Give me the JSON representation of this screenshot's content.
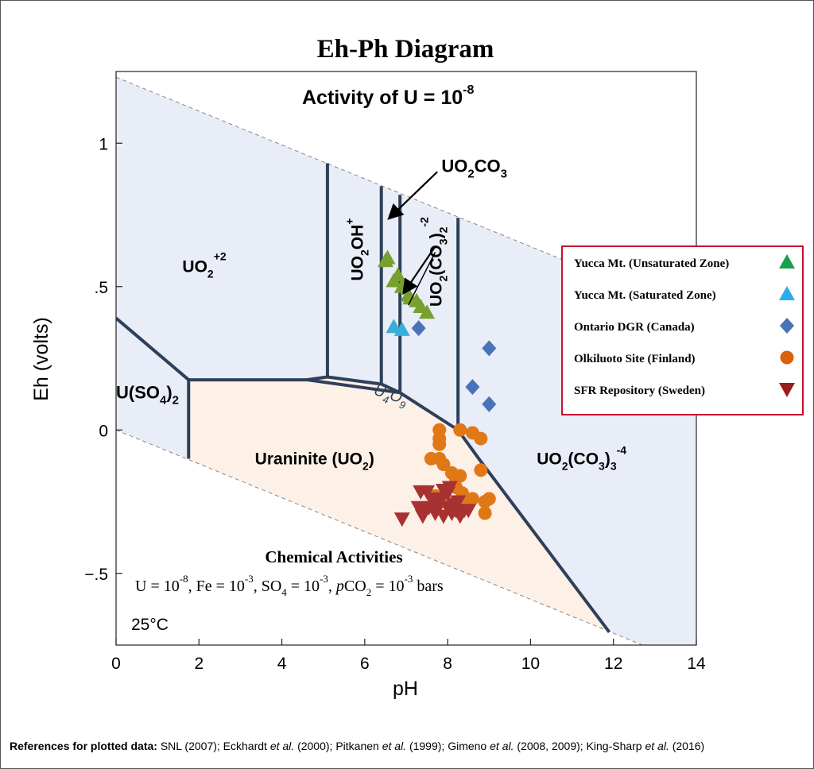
{
  "chart_data": {
    "type": "scatter",
    "title": "Eh-Ph Diagram",
    "subtitle_prefix": "Activity of U  =  10",
    "subtitle_exp": "-8",
    "xlabel": "pH",
    "ylabel": "Eh (volts)",
    "xlim": [
      0,
      14
    ],
    "ylim": [
      -0.75,
      1.25
    ],
    "xticks": [
      0,
      2,
      4,
      6,
      8,
      10,
      12,
      14
    ],
    "xtick_labels": [
      "0",
      "2",
      "4",
      "6",
      "8",
      "10",
      "12",
      "14"
    ],
    "yticks": [
      1,
      0.5,
      0,
      -0.5
    ],
    "ytick_labels": [
      "1",
      ".5",
      "0",
      "−.5"
    ],
    "grid": false,
    "legend_position": "right",
    "water_stability": {
      "upper": [
        [
          0,
          1.23
        ],
        [
          12.6,
          0.486
        ]
      ],
      "lower": [
        [
          0,
          0
        ],
        [
          12.6,
          -0.744
        ]
      ]
    },
    "boundaries": [
      [
        [
          0,
          0.39
        ],
        [
          1.75,
          0.175
        ],
        [
          4.6,
          0.175
        ],
        [
          5.1,
          0.185
        ],
        [
          6.4,
          0.16
        ],
        [
          6.85,
          0.13
        ],
        [
          8.25,
          0.0
        ],
        [
          8.75,
          -0.1
        ],
        [
          11.9,
          -0.705
        ]
      ],
      [
        [
          1.75,
          0.175
        ],
        [
          1.75,
          -0.1
        ]
      ],
      [
        [
          5.1,
          0.185
        ],
        [
          5.1,
          0.93
        ]
      ],
      [
        [
          6.4,
          0.16
        ],
        [
          6.4,
          0.85
        ]
      ],
      [
        [
          6.85,
          0.13
        ],
        [
          6.85,
          0.82
        ]
      ],
      [
        [
          8.25,
          0.0
        ],
        [
          8.25,
          0.74
        ]
      ],
      [
        [
          4.6,
          0.175
        ],
        [
          6.85,
          0.13
        ]
      ]
    ],
    "regions": {
      "uo2_2": {
        "base": "UO",
        "sub": "2",
        "sup": "+2",
        "at": [
          1.6,
          0.55
        ]
      },
      "u_so4_2": {
        "pre": "U(SO",
        "sub1": "4",
        "mid": ")",
        "sub2": "2",
        "at": [
          0.0,
          0.11
        ]
      },
      "uo2oh": {
        "base": "UO",
        "sub": "2",
        "mid": "OH",
        "sup": "+",
        "at": [
          5.95,
          0.52
        ]
      },
      "uo2co3_2": {
        "pre": "UO",
        "sub1": "2",
        "mid": "(CO",
        "sub2": "3",
        "post": ")",
        "sub3": "2",
        "sup": "-2",
        "at": [
          7.85,
          0.43
        ]
      },
      "uo2co3": {
        "pre": "UO",
        "sub1": "2",
        "mid": "CO",
        "sub2": "3",
        "at": [
          7.85,
          0.9
        ]
      },
      "u4o9": {
        "pre": "U",
        "sub1": "4",
        "mid": "O",
        "sub2": "9",
        "at": [
          6.2,
          0.125
        ]
      },
      "uraninite": {
        "pre": "Uraninite (UO",
        "sub": "2",
        "post": ")",
        "at": [
          3.35,
          -0.12
        ]
      },
      "uo2co3_3": {
        "pre": "UO",
        "sub1": "2",
        "mid": "(CO",
        "sub2": "3",
        "post": ")",
        "sub3": "3",
        "sup": "-4",
        "at": [
          10.15,
          -0.12
        ]
      }
    },
    "arrows": [
      {
        "from": [
          7.75,
          0.9
        ],
        "to": [
          6.6,
          0.74
        ]
      },
      {
        "from": [
          7.7,
          0.64
        ],
        "to": [
          6.95,
          0.48
        ]
      }
    ],
    "chemical_activities": {
      "heading": "Chemical Activities",
      "u_pre": "U = 10",
      "u_exp": "-8",
      "fe_pre": ", Fe = 10",
      "fe_exp": "-3",
      "so4_pre": ", SO",
      "so4_sub": "4",
      "so4_mid": " = 10",
      "so4_exp": "-3",
      "pco2_p": "p",
      "pco2_pre": "CO",
      "pco2_sub": "2",
      "pco2_mid": " =  10",
      "pco2_exp": "-3",
      "units": " bars"
    },
    "temperature": "25°C",
    "series": [
      {
        "name": "Yucca Mt. (Unsaturated Zone)",
        "marker": "triangle-up",
        "color": "#78a02c",
        "legend_color": "#1aa04a",
        "points": [
          [
            6.5,
            0.59
          ],
          [
            6.55,
            0.6
          ],
          [
            6.7,
            0.52
          ],
          [
            6.8,
            0.54
          ],
          [
            7.05,
            0.47
          ],
          [
            7.1,
            0.46
          ],
          [
            7.25,
            0.45
          ],
          [
            7.35,
            0.43
          ],
          [
            7.5,
            0.41
          ],
          [
            6.9,
            0.5
          ]
        ]
      },
      {
        "name": "Yucca Mt. (Saturated Zone)",
        "marker": "triangle-up",
        "color": "#3aaed8",
        "legend_color": "#2aaee8",
        "points": [
          [
            6.7,
            0.36
          ],
          [
            6.9,
            0.35
          ]
        ]
      },
      {
        "name": "Ontario DGR (Canada)",
        "marker": "diamond",
        "color": "#4a72b8",
        "legend_color": "#4a72b8",
        "points": [
          [
            7.3,
            0.355
          ],
          [
            9.0,
            0.285
          ],
          [
            8.6,
            0.15
          ],
          [
            9.0,
            0.09
          ]
        ]
      },
      {
        "name": "Olkiluoto Site (Finland)",
        "marker": "circle",
        "color": "#e07818",
        "legend_color": "#d8620e",
        "points": [
          [
            7.8,
            0.0
          ],
          [
            7.8,
            -0.03
          ],
          [
            7.8,
            -0.05
          ],
          [
            8.3,
            0.0
          ],
          [
            8.6,
            -0.01
          ],
          [
            8.8,
            -0.03
          ],
          [
            7.6,
            -0.1
          ],
          [
            7.8,
            -0.1
          ],
          [
            7.9,
            -0.12
          ],
          [
            8.1,
            -0.15
          ],
          [
            8.2,
            -0.17
          ],
          [
            8.3,
            -0.16
          ],
          [
            8.8,
            -0.14
          ],
          [
            8.2,
            -0.2
          ],
          [
            8.35,
            -0.22
          ],
          [
            8.4,
            -0.25
          ],
          [
            8.6,
            -0.24
          ],
          [
            8.9,
            -0.25
          ],
          [
            9.0,
            -0.24
          ],
          [
            8.2,
            -0.28
          ],
          [
            8.9,
            -0.29
          ],
          [
            7.7,
            -0.23
          ],
          [
            7.95,
            -0.25
          ],
          [
            8.1,
            -0.27
          ]
        ]
      },
      {
        "name": "SFR Repository (Sweden)",
        "marker": "triangle-down",
        "color": "#a83232",
        "legend_color": "#9a1e1e",
        "points": [
          [
            6.9,
            -0.31
          ],
          [
            7.35,
            -0.215
          ],
          [
            7.5,
            -0.215
          ],
          [
            7.6,
            -0.24
          ],
          [
            7.7,
            -0.25
          ],
          [
            7.85,
            -0.24
          ],
          [
            7.9,
            -0.21
          ],
          [
            8.0,
            -0.22
          ],
          [
            8.05,
            -0.2
          ],
          [
            8.15,
            -0.26
          ],
          [
            7.3,
            -0.27
          ],
          [
            7.45,
            -0.28
          ],
          [
            7.7,
            -0.29
          ],
          [
            7.9,
            -0.3
          ],
          [
            8.0,
            -0.27
          ],
          [
            8.2,
            -0.28
          ],
          [
            8.3,
            -0.3
          ],
          [
            8.4,
            -0.28
          ],
          [
            8.5,
            -0.28
          ],
          [
            7.55,
            -0.27
          ],
          [
            8.1,
            -0.29
          ],
          [
            7.4,
            -0.3
          ],
          [
            7.75,
            -0.27
          ],
          [
            8.25,
            -0.25
          ]
        ]
      }
    ]
  },
  "references": {
    "label": "References for plotted data:",
    "parts": [
      {
        "t": " SNL (2007); Eckhardt ",
        "i": false
      },
      {
        "t": "et al.",
        "i": true
      },
      {
        "t": " (2000); Pitkanen ",
        "i": false
      },
      {
        "t": "et al.",
        "i": true
      },
      {
        "t": " (1999); Gimeno ",
        "i": false
      },
      {
        "t": "et al.",
        "i": true
      },
      {
        "t": " (2008, 2009); King-Sharp ",
        "i": false
      },
      {
        "t": "et al.",
        "i": true
      },
      {
        "t": " (2016)",
        "i": false
      }
    ]
  }
}
